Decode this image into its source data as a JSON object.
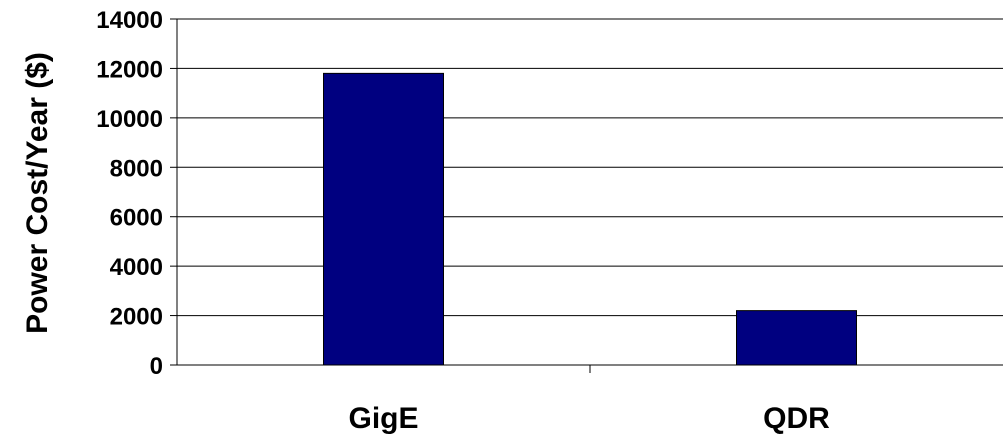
{
  "chart_data": {
    "type": "bar",
    "title": "",
    "xlabel": "",
    "ylabel": "Power Cost/Year ($)",
    "categories": [
      "GigE",
      "QDR"
    ],
    "values": [
      11800,
      2200
    ],
    "ylim": [
      0,
      14000
    ],
    "yticks": [
      0,
      2000,
      4000,
      6000,
      8000,
      10000,
      12000,
      14000
    ],
    "grid": true,
    "legend": "none",
    "bar_color": "#000080"
  }
}
